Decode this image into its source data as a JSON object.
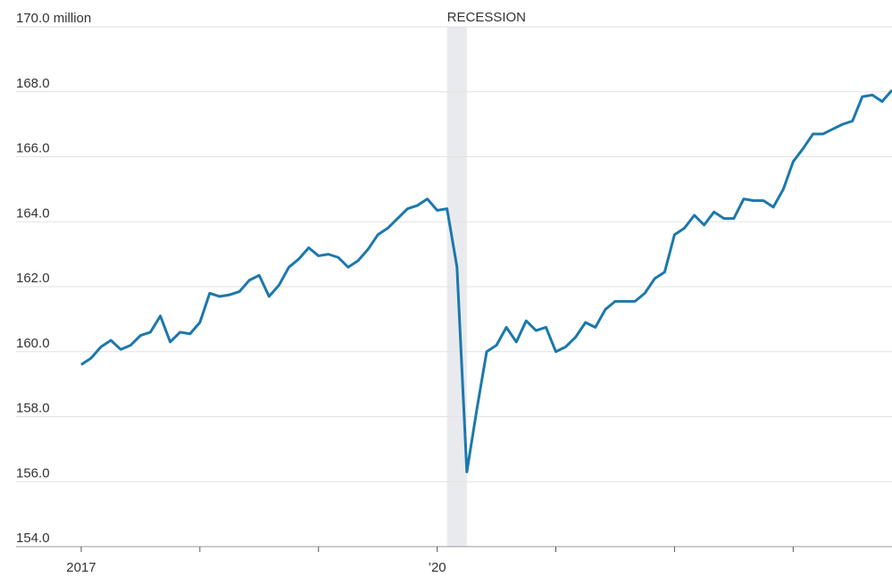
{
  "chart_data": {
    "type": "line",
    "recession": {
      "label": "RECESSION",
      "start": 2020.083,
      "end": 2020.25
    },
    "x": [
      2017,
      2017.083,
      2017.167,
      2017.25,
      2017.333,
      2017.417,
      2017.5,
      2017.583,
      2017.667,
      2017.75,
      2017.833,
      2017.917,
      2018,
      2018.083,
      2018.167,
      2018.25,
      2018.333,
      2018.417,
      2018.5,
      2018.583,
      2018.667,
      2018.75,
      2018.833,
      2018.917,
      2019,
      2019.083,
      2019.167,
      2019.25,
      2019.333,
      2019.417,
      2019.5,
      2019.583,
      2019.667,
      2019.75,
      2019.833,
      2019.917,
      2020,
      2020.083,
      2020.167,
      2020.25,
      2020.333,
      2020.417,
      2020.5,
      2020.583,
      2020.667,
      2020.75,
      2020.833,
      2020.917,
      2021,
      2021.083,
      2021.167,
      2021.25,
      2021.333,
      2021.417,
      2021.5,
      2021.583,
      2021.667,
      2021.75,
      2021.833,
      2021.917,
      2022,
      2022.083,
      2022.167,
      2022.25,
      2022.333,
      2022.417,
      2022.5,
      2022.583,
      2022.667,
      2022.75,
      2022.833,
      2022.917,
      2023,
      2023.083,
      2023.167,
      2023.25,
      2023.333,
      2023.417,
      2023.5,
      2023.583,
      2023.667,
      2023.75,
      2023.833
    ],
    "series": [
      {
        "color": "#1b78ad",
        "values": [
          159.6,
          159.8,
          160.15,
          160.35,
          160.07,
          160.2,
          160.5,
          160.6,
          161.1,
          160.3,
          160.6,
          160.55,
          160.9,
          161.8,
          161.7,
          161.75,
          161.85,
          162.2,
          162.35,
          161.7,
          162.05,
          162.6,
          162.85,
          163.2,
          162.95,
          163.0,
          162.9,
          162.6,
          162.8,
          163.15,
          163.6,
          163.8,
          164.1,
          164.4,
          164.5,
          164.7,
          164.35,
          164.4,
          162.6,
          156.3,
          158.2,
          160.0,
          160.2,
          160.75,
          160.3,
          160.95,
          160.65,
          160.75,
          160.0,
          160.15,
          160.45,
          160.9,
          160.75,
          161.3,
          161.55,
          161.55,
          161.55,
          161.8,
          162.25,
          162.45,
          163.6,
          163.8,
          164.2,
          163.9,
          164.3,
          164.1,
          164.1,
          164.7,
          164.65,
          164.65,
          164.45,
          165.0,
          165.85,
          166.25,
          166.7,
          166.7,
          166.85,
          167.0,
          167.1,
          167.85,
          167.9,
          167.7,
          168.05
        ]
      }
    ],
    "xlim": [
      2016.451,
      2023.833
    ],
    "xticks": [
      2017,
      2018,
      2019,
      2020,
      2021,
      2022,
      2023
    ],
    "xtick_labels": [
      {
        "value": 2017,
        "label": "2017"
      },
      {
        "value": 2020,
        "label": "’20"
      }
    ],
    "ylim": [
      154,
      170
    ],
    "yticks": [
      {
        "value": 154,
        "label": "154.0"
      },
      {
        "value": 156,
        "label": "156.0"
      },
      {
        "value": 158,
        "label": "158.0"
      },
      {
        "value": 160,
        "label": "160.0"
      },
      {
        "value": 162,
        "label": "162.0"
      },
      {
        "value": 164,
        "label": "164.0"
      },
      {
        "value": 166,
        "label": "166.0"
      },
      {
        "value": 168,
        "label": "168.0"
      },
      {
        "value": 170,
        "label": "170.0 million"
      }
    ],
    "grid": true
  }
}
